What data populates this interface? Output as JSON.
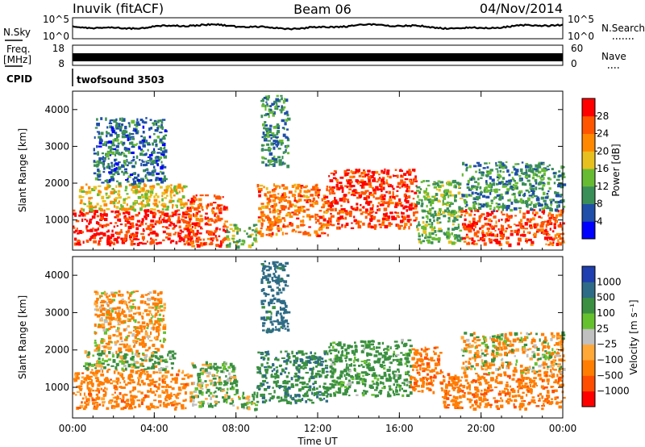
{
  "header": {
    "station": "Inuvik (fitACF)",
    "beam": "Beam 06",
    "date": "04/Nov/2014"
  },
  "panels": {
    "nsky_label": "N.Sky",
    "nsearch_label": "N.Search",
    "freq_label": "Freq.",
    "freq_unit": "[MHz]",
    "nave_label": "Nave",
    "cpid_label": "CPID",
    "cpid_value": "twofsound 3503",
    "noise_ticks_left": [
      "10^5",
      "10^0"
    ],
    "noise_ticks_right": [
      "10^5",
      "10^0"
    ],
    "freq_ticks_left": [
      "18",
      "8"
    ],
    "nave_ticks_right": [
      "60",
      "0"
    ]
  },
  "colors": {
    "power_scale": [
      "#0000ff",
      "#1f4fa8",
      "#3a8f58",
      "#66bb33",
      "#e7c020",
      "#ff8800",
      "#ff5500",
      "#ff0000"
    ],
    "velocity_scale": [
      "#1f3fb0",
      "#2e6b86",
      "#3a9040",
      "#66c12f",
      "#c0c0c0",
      "#ffa838",
      "#ff7d00",
      "#ff4d00",
      "#ff0000"
    ]
  },
  "chart_data": [
    {
      "type": "heatmap",
      "name": "power",
      "xlabel": "",
      "ylabel": "Slant Range [km]",
      "x_ticks": [
        "00:00",
        "04:00",
        "08:00",
        "12:00",
        "16:00",
        "20:00",
        "00:00"
      ],
      "xlim_hours": [
        0,
        24
      ],
      "ylim": [
        180,
        4500
      ],
      "y_ticks": [
        1000,
        2000,
        3000,
        4000
      ],
      "colorbar": {
        "label": "Power [dB]",
        "ticks": [
          4,
          8,
          12,
          16,
          20,
          24,
          28
        ],
        "range": [
          0,
          32
        ]
      },
      "regions": [
        {
          "t0": 0.0,
          "t1": 5.8,
          "r0": 350,
          "r1": 1300,
          "level": 29
        },
        {
          "t0": 0.3,
          "t1": 5.5,
          "r0": 1300,
          "r1": 2000,
          "level": 18
        },
        {
          "t0": 1.0,
          "t1": 4.5,
          "r0": 2000,
          "r1": 3800,
          "level": 8
        },
        {
          "t0": 5.5,
          "t1": 7.5,
          "r0": 300,
          "r1": 1700,
          "level": 27
        },
        {
          "t0": 7.5,
          "t1": 9.0,
          "r0": 300,
          "r1": 900,
          "level": 14
        },
        {
          "t0": 9.0,
          "t1": 12.5,
          "r0": 600,
          "r1": 2000,
          "level": 24
        },
        {
          "t0": 9.2,
          "t1": 10.5,
          "r0": 2500,
          "r1": 4400,
          "level": 9
        },
        {
          "t0": 12.5,
          "t1": 16.8,
          "r0": 800,
          "r1": 2400,
          "level": 28
        },
        {
          "t0": 16.8,
          "t1": 19.0,
          "r0": 400,
          "r1": 2100,
          "level": 13
        },
        {
          "t0": 19.0,
          "t1": 24.0,
          "r0": 350,
          "r1": 1300,
          "level": 27
        },
        {
          "t0": 19.0,
          "t1": 24.0,
          "r0": 1300,
          "r1": 2600,
          "level": 10
        }
      ]
    },
    {
      "type": "heatmap",
      "name": "velocity",
      "xlabel": "Time UT",
      "ylabel": "Slant Range [km]",
      "x_ticks": [
        "00:00",
        "04:00",
        "08:00",
        "12:00",
        "16:00",
        "20:00",
        "00:00"
      ],
      "xlim_hours": [
        0,
        24
      ],
      "ylim": [
        180,
        4500
      ],
      "y_ticks": [
        1000,
        2000,
        3000,
        4000
      ],
      "colorbar": {
        "label": "Velocity [m s⁻¹]",
        "ticks": [
          "1000",
          "500",
          "100",
          "25",
          "−25",
          "−100",
          "−500",
          "−1000"
        ]
      },
      "regions": [
        {
          "t0": 0.0,
          "t1": 5.8,
          "r0": 450,
          "r1": 1500,
          "level": -300
        },
        {
          "t0": 0.5,
          "t1": 5.0,
          "r0": 1500,
          "r1": 2000,
          "level": 120
        },
        {
          "t0": 1.0,
          "t1": 4.5,
          "r0": 2000,
          "r1": 3600,
          "level": -150
        },
        {
          "t0": 5.8,
          "t1": 8.0,
          "r0": 500,
          "r1": 1700,
          "level": 150
        },
        {
          "t0": 8.0,
          "t1": 9.0,
          "r0": 400,
          "r1": 900,
          "level": 60
        },
        {
          "t0": 9.0,
          "t1": 12.5,
          "r0": 600,
          "r1": 2000,
          "level": 400
        },
        {
          "t0": 9.2,
          "t1": 10.5,
          "r0": 2500,
          "r1": 4400,
          "level": 700
        },
        {
          "t0": 12.5,
          "t1": 16.5,
          "r0": 800,
          "r1": 2300,
          "level": 250
        },
        {
          "t0": 16.5,
          "t1": 18.0,
          "r0": 900,
          "r1": 2100,
          "level": -400
        },
        {
          "t0": 18.0,
          "t1": 24.0,
          "r0": 450,
          "r1": 1400,
          "level": -350
        },
        {
          "t0": 19.0,
          "t1": 24.0,
          "r0": 1400,
          "r1": 2500,
          "level": -60
        }
      ]
    }
  ]
}
